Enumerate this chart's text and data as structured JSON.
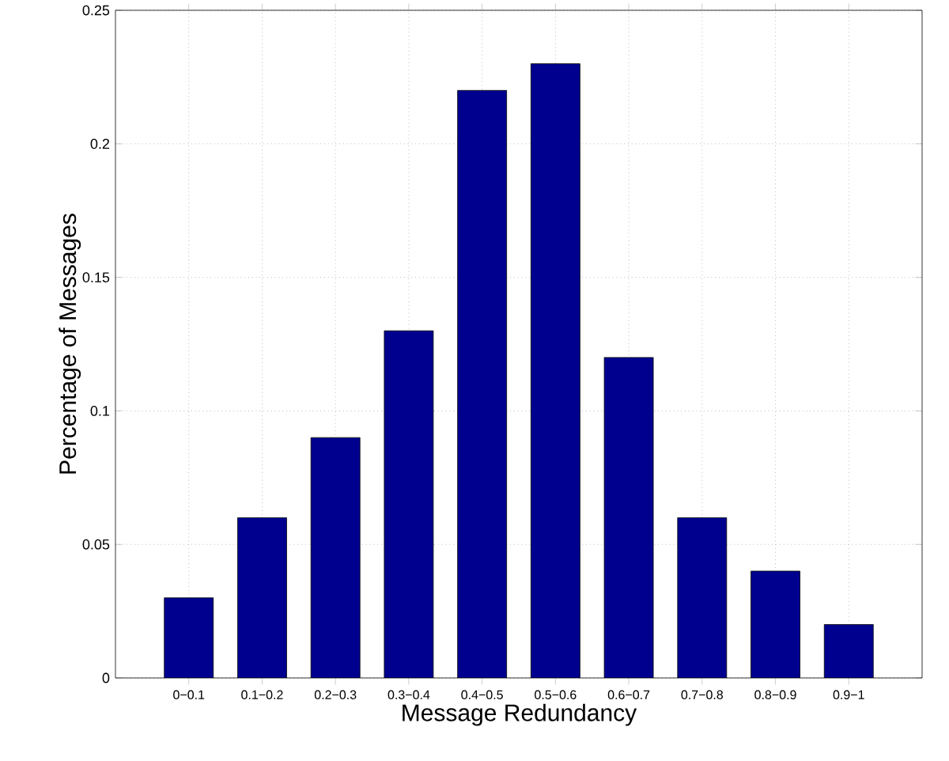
{
  "chart_data": {
    "type": "bar",
    "xlabel": "Message Redundancy",
    "ylabel": "Percentage of Messages",
    "categories": [
      "0−0.1",
      "0.1−0.2",
      "0.2−0.3",
      "0.3−0.4",
      "0.4−0.5",
      "0.5−0.6",
      "0.6−0.7",
      "0.7−0.8",
      "0.8−0.9",
      "0.9−1"
    ],
    "values": [
      0.03,
      0.06,
      0.09,
      0.13,
      0.22,
      0.23,
      0.12,
      0.06,
      0.04,
      0.02
    ],
    "color": "#00008f",
    "ylim": [
      0,
      0.25
    ],
    "yticks": [
      0,
      0.05,
      0.1,
      0.15,
      0.2,
      0.25
    ],
    "grid": true
  }
}
